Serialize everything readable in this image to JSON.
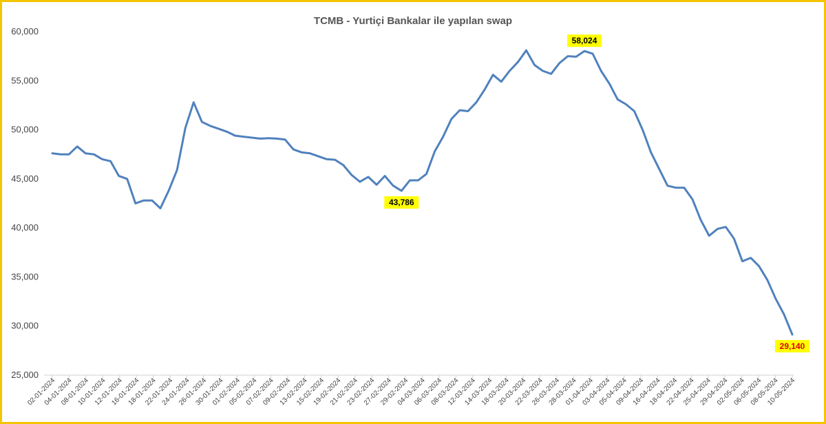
{
  "chart_data": {
    "type": "line",
    "title": "TCMB - Yurtiçi Bankalar ile yapılan swap",
    "xlabel": "",
    "ylabel": "",
    "ylim": [
      25000,
      60000
    ],
    "yticks": [
      "25,000",
      "30,000",
      "35,000",
      "40,000",
      "45,000",
      "50,000",
      "55,000",
      "60,000"
    ],
    "grid": false,
    "legend": "none",
    "line_color": "#4f81bd",
    "xtick_labels": [
      "02-01-2024",
      "04-01-2024",
      "08-01-2024",
      "10-01-2024",
      "12-01-2024",
      "16-01-2024",
      "18-01-2024",
      "22-01-2024",
      "24-01-2024",
      "26-01-2024",
      "30-01-2024",
      "01-02-2024",
      "05-02-2024",
      "07-02-2024",
      "09-02-2024",
      "13-02-2024",
      "15-02-2024",
      "19-02-2024",
      "21-02-2024",
      "23-02-2024",
      "27-02-2024",
      "29-02-2024",
      "04-03-2024",
      "06-03-2024",
      "08-03-2024",
      "12-03-2024",
      "14-03-2024",
      "18-03-2024",
      "20-03-2024",
      "22-03-2024",
      "26-03-2024",
      "28-03-2024",
      "01-04-2024",
      "03-04-2024",
      "05-04-2024",
      "09-04-2024",
      "16-04-2024",
      "18-04-2024",
      "22-04-2024",
      "25-04-2024",
      "29-04-2024",
      "02-05-2024",
      "06-05-2024",
      "08-05-2024",
      "10-05-2024"
    ],
    "values": [
      47600,
      47500,
      47500,
      48300,
      47600,
      47500,
      47000,
      46800,
      45300,
      45000,
      42500,
      42800,
      42800,
      42000,
      43800,
      45900,
      50200,
      52800,
      50800,
      50400,
      50100,
      49800,
      49400,
      49300,
      49200,
      49100,
      49150,
      49100,
      49000,
      48000,
      47700,
      47600,
      47300,
      47000,
      46950,
      46400,
      45400,
      44700,
      45200,
      44400,
      45300,
      44300,
      43786,
      44850,
      44850,
      45500,
      47800,
      49300,
      51100,
      52000,
      51900,
      52800,
      54100,
      55600,
      54900,
      56000,
      56900,
      58100,
      56600,
      56000,
      55700,
      56800,
      57500,
      57450,
      58024,
      57750,
      56000,
      54700,
      53100,
      52600,
      51900,
      50000,
      47700,
      46000,
      44300,
      44100,
      44100,
      42900,
      40800,
      39200,
      39900,
      40100,
      38900,
      36600,
      36950,
      36100,
      34700,
      32800,
      31200,
      29140
    ],
    "annotations": [
      {
        "label": "43,786",
        "index": 42,
        "value": 43786,
        "place": "below",
        "text_color": "#000000",
        "bg": "#ffff00"
      },
      {
        "label": "58,024",
        "index": 64,
        "value": 58024,
        "place": "above",
        "text_color": "#000000",
        "bg": "#ffff00"
      },
      {
        "label": "29,140",
        "index": 89,
        "value": 29140,
        "place": "below",
        "text_color": "#e00000",
        "bg": "#ffff00"
      }
    ]
  }
}
